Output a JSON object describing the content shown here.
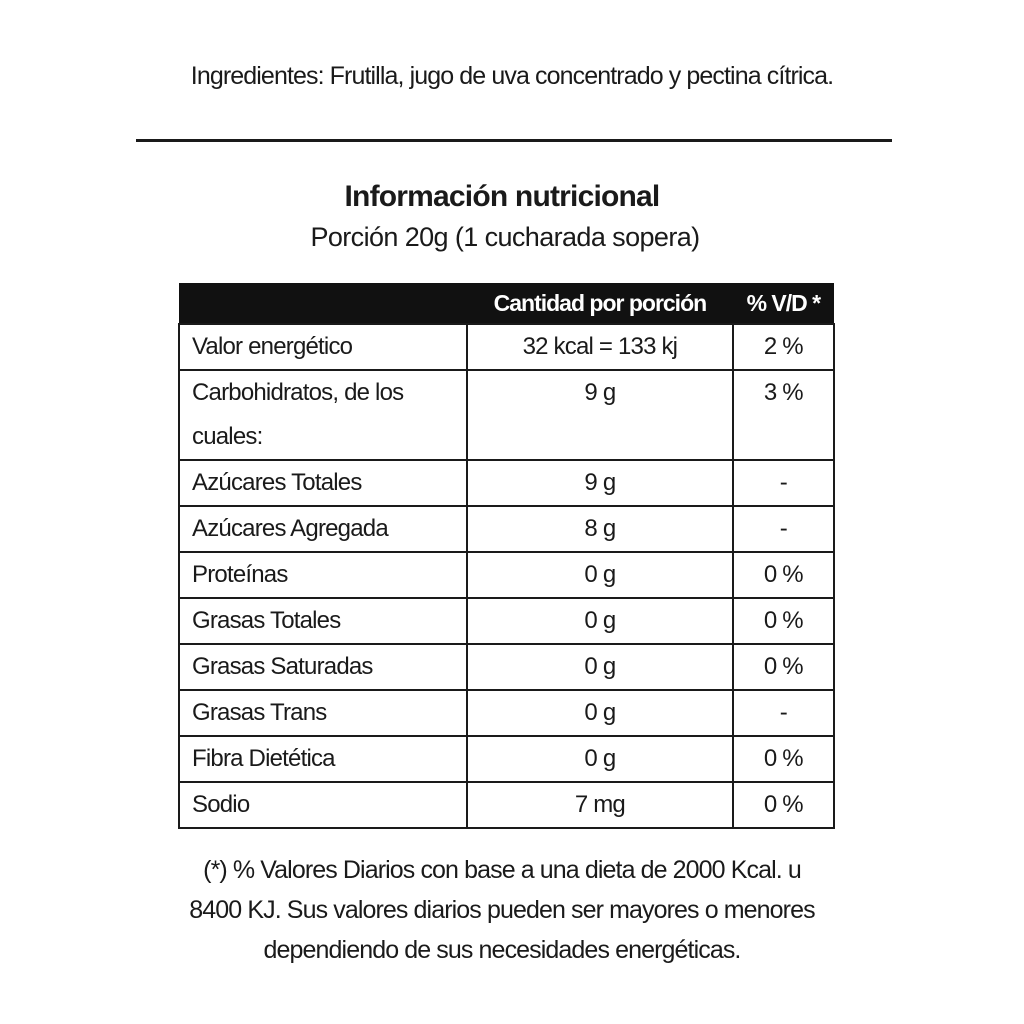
{
  "ingredients": "Ingredientes: Frutilla, jugo de uva concentrado y pectina cítrica.",
  "title": "Información nutricional",
  "portion": "Porción 20g (1 cucharada sopera)",
  "table": {
    "headers": [
      "",
      "Cantidad por porción",
      "% V/D *"
    ],
    "rows": [
      {
        "name": "Valor energético",
        "amount": "32 kcal = 133 kj",
        "dv": "2 %"
      },
      {
        "name": "Carbohidratos, de los cuales:",
        "amount": "9 g",
        "dv": "3 %"
      },
      {
        "name": "Azúcares Totales",
        "amount": "9 g",
        "dv": "-"
      },
      {
        "name": "Azúcares Agregada",
        "amount": "8 g",
        "dv": "-"
      },
      {
        "name": "Proteínas",
        "amount": "0 g",
        "dv": "0 %"
      },
      {
        "name": "Grasas Totales",
        "amount": "0 g",
        "dv": "0 %"
      },
      {
        "name": "Grasas Saturadas",
        "amount": "0 g",
        "dv": "0 %"
      },
      {
        "name": "Grasas Trans",
        "amount": "0 g",
        "dv": "-"
      },
      {
        "name": "Fibra Dietética",
        "amount": "0 g",
        "dv": "0 %"
      },
      {
        "name": "Sodio",
        "amount": "7 mg",
        "dv": "0 %"
      }
    ]
  },
  "footnote": [
    "(*) % Valores Diarios con base a una dieta de 2000 Kcal. u",
    "8400 KJ. Sus valores diarios pueden ser mayores o menores",
    "dependiendo de sus necesidades energéticas."
  ]
}
